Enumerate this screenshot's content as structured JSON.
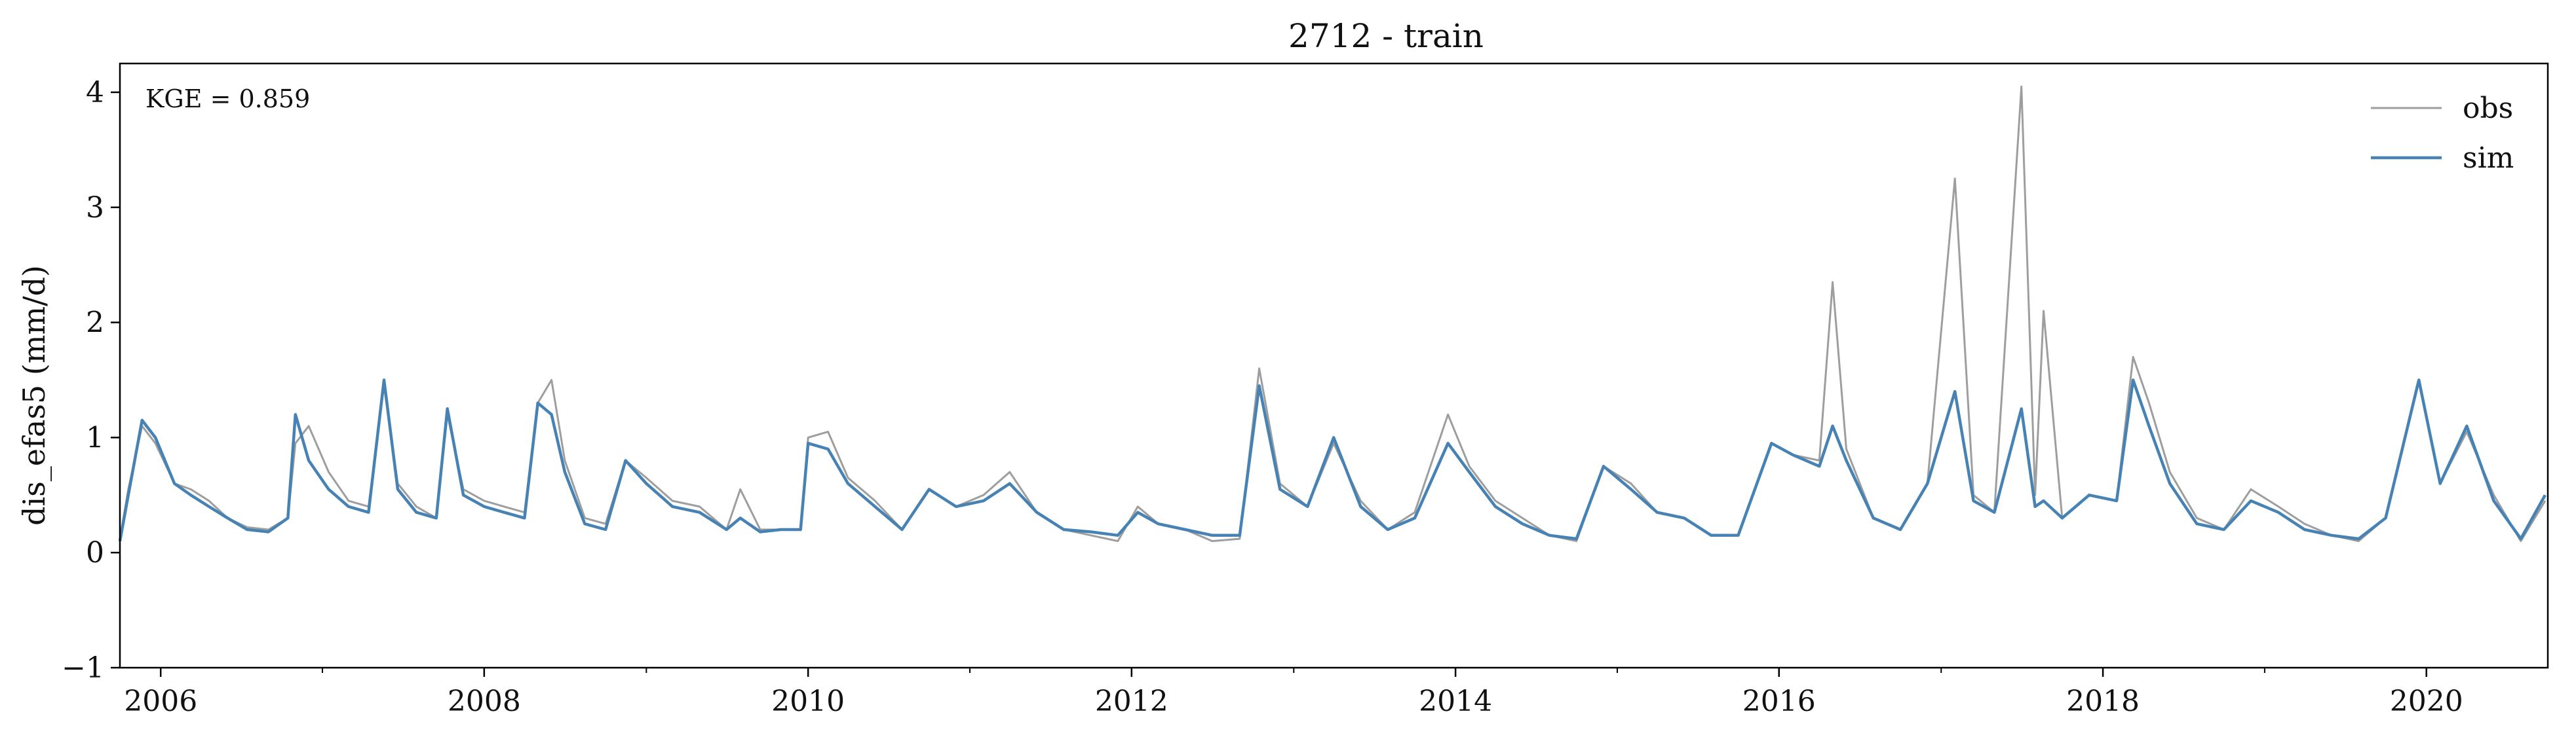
{
  "chart_data": {
    "type": "line",
    "title": "2712 - train",
    "xlabel": "",
    "ylabel": "dis_efas5 (mm/d)",
    "xlim": [
      "2005-10-01",
      "2020-10-01"
    ],
    "ylim": [
      -1,
      4.25
    ],
    "x_ticks_major": [
      "2006",
      "2008",
      "2010",
      "2012",
      "2014",
      "2016",
      "2018",
      "2020"
    ],
    "x_ticks_minor_years": [
      2007,
      2009,
      2011,
      2013,
      2015,
      2017,
      2019
    ],
    "y_ticks": [
      "−1",
      "0",
      "1",
      "2",
      "3",
      "4"
    ],
    "grid": false,
    "legend": {
      "position": "top-right",
      "entries": [
        "obs",
        "sim"
      ]
    },
    "annotation": "KGE = 0.859",
    "series": [
      {
        "name": "obs",
        "color": "#9e9e9e",
        "points": [
          [
            "2005-10-01",
            0.12
          ],
          [
            "2005-10-20",
            0.55
          ],
          [
            "2005-11-20",
            1.1
          ],
          [
            "2005-12-20",
            0.95
          ],
          [
            "2006-02-01",
            0.6
          ],
          [
            "2006-03-10",
            0.55
          ],
          [
            "2006-04-20",
            0.45
          ],
          [
            "2006-06-01",
            0.3
          ],
          [
            "2006-07-15",
            0.22
          ],
          [
            "2006-09-01",
            0.2
          ],
          [
            "2006-10-15",
            0.3
          ],
          [
            "2006-11-01",
            0.95
          ],
          [
            "2006-12-01",
            1.1
          ],
          [
            "2007-01-15",
            0.7
          ],
          [
            "2007-03-01",
            0.45
          ],
          [
            "2007-04-15",
            0.4
          ],
          [
            "2007-05-20",
            1.45
          ],
          [
            "2007-06-20",
            0.6
          ],
          [
            "2007-08-01",
            0.4
          ],
          [
            "2007-09-15",
            0.3
          ],
          [
            "2007-10-10",
            1.2
          ],
          [
            "2007-11-15",
            0.55
          ],
          [
            "2008-01-01",
            0.45
          ],
          [
            "2008-02-15",
            0.4
          ],
          [
            "2008-04-01",
            0.35
          ],
          [
            "2008-05-01",
            1.3
          ],
          [
            "2008-06-01",
            1.5
          ],
          [
            "2008-07-01",
            0.8
          ],
          [
            "2008-08-15",
            0.3
          ],
          [
            "2008-10-01",
            0.25
          ],
          [
            "2008-11-15",
            0.8
          ],
          [
            "2009-01-01",
            0.65
          ],
          [
            "2009-03-01",
            0.45
          ],
          [
            "2009-05-01",
            0.4
          ],
          [
            "2009-07-01",
            0.2
          ],
          [
            "2009-08-01",
            0.55
          ],
          [
            "2009-09-15",
            0.2
          ],
          [
            "2009-11-01",
            0.2
          ],
          [
            "2009-12-15",
            0.2
          ],
          [
            "2010-01-01",
            1.0
          ],
          [
            "2010-02-15",
            1.05
          ],
          [
            "2010-04-01",
            0.65
          ],
          [
            "2010-06-01",
            0.45
          ],
          [
            "2010-08-01",
            0.2
          ],
          [
            "2010-10-01",
            0.55
          ],
          [
            "2010-12-01",
            0.4
          ],
          [
            "2011-02-01",
            0.5
          ],
          [
            "2011-04-01",
            0.7
          ],
          [
            "2011-06-01",
            0.35
          ],
          [
            "2011-08-01",
            0.2
          ],
          [
            "2011-10-01",
            0.15
          ],
          [
            "2011-12-01",
            0.1
          ],
          [
            "2012-01-15",
            0.4
          ],
          [
            "2012-03-01",
            0.25
          ],
          [
            "2012-05-01",
            0.2
          ],
          [
            "2012-07-01",
            0.1
          ],
          [
            "2012-09-01",
            0.12
          ],
          [
            "2012-10-15",
            1.6
          ],
          [
            "2012-12-01",
            0.6
          ],
          [
            "2013-02-01",
            0.4
          ],
          [
            "2013-04-01",
            0.95
          ],
          [
            "2013-06-01",
            0.45
          ],
          [
            "2013-08-01",
            0.2
          ],
          [
            "2013-10-01",
            0.35
          ],
          [
            "2013-12-15",
            1.2
          ],
          [
            "2014-02-01",
            0.75
          ],
          [
            "2014-04-01",
            0.45
          ],
          [
            "2014-06-01",
            0.3
          ],
          [
            "2014-08-01",
            0.15
          ],
          [
            "2014-10-01",
            0.1
          ],
          [
            "2014-12-01",
            0.75
          ],
          [
            "2015-02-01",
            0.6
          ],
          [
            "2015-04-01",
            0.35
          ],
          [
            "2015-06-01",
            0.3
          ],
          [
            "2015-08-01",
            0.15
          ],
          [
            "2015-10-01",
            0.15
          ],
          [
            "2015-12-15",
            0.95
          ],
          [
            "2016-02-01",
            0.85
          ],
          [
            "2016-04-01",
            0.8
          ],
          [
            "2016-05-01",
            2.35
          ],
          [
            "2016-06-01",
            0.9
          ],
          [
            "2016-08-01",
            0.3
          ],
          [
            "2016-10-01",
            0.2
          ],
          [
            "2016-12-01",
            0.6
          ],
          [
            "2017-02-01",
            3.25
          ],
          [
            "2017-03-15",
            0.5
          ],
          [
            "2017-05-01",
            0.35
          ],
          [
            "2017-07-01",
            4.05
          ],
          [
            "2017-08-01",
            0.5
          ],
          [
            "2017-08-20",
            2.1
          ],
          [
            "2017-10-01",
            0.3
          ],
          [
            "2017-12-01",
            0.5
          ],
          [
            "2018-02-01",
            0.45
          ],
          [
            "2018-03-10",
            1.7
          ],
          [
            "2018-04-15",
            1.3
          ],
          [
            "2018-06-01",
            0.7
          ],
          [
            "2018-08-01",
            0.3
          ],
          [
            "2018-10-01",
            0.2
          ],
          [
            "2018-12-01",
            0.55
          ],
          [
            "2019-02-01",
            0.4
          ],
          [
            "2019-04-01",
            0.25
          ],
          [
            "2019-06-01",
            0.15
          ],
          [
            "2019-08-01",
            0.1
          ],
          [
            "2019-10-01",
            0.3
          ],
          [
            "2019-12-15",
            1.5
          ],
          [
            "2020-02-01",
            0.6
          ],
          [
            "2020-04-01",
            1.05
          ],
          [
            "2020-06-01",
            0.5
          ],
          [
            "2020-08-01",
            0.1
          ],
          [
            "2020-09-25",
            0.45
          ]
        ]
      },
      {
        "name": "sim",
        "color": "#4682b4",
        "points": [
          [
            "2005-10-01",
            0.1
          ],
          [
            "2005-10-20",
            0.5
          ],
          [
            "2005-11-20",
            1.15
          ],
          [
            "2005-12-20",
            1.0
          ],
          [
            "2006-02-01",
            0.6
          ],
          [
            "2006-03-10",
            0.5
          ],
          [
            "2006-04-20",
            0.4
          ],
          [
            "2006-06-01",
            0.3
          ],
          [
            "2006-07-15",
            0.2
          ],
          [
            "2006-09-01",
            0.18
          ],
          [
            "2006-10-15",
            0.3
          ],
          [
            "2006-11-01",
            1.2
          ],
          [
            "2006-12-01",
            0.8
          ],
          [
            "2007-01-15",
            0.55
          ],
          [
            "2007-03-01",
            0.4
          ],
          [
            "2007-04-15",
            0.35
          ],
          [
            "2007-05-20",
            1.5
          ],
          [
            "2007-06-20",
            0.55
          ],
          [
            "2007-08-01",
            0.35
          ],
          [
            "2007-09-15",
            0.3
          ],
          [
            "2007-10-10",
            1.25
          ],
          [
            "2007-11-15",
            0.5
          ],
          [
            "2008-01-01",
            0.4
          ],
          [
            "2008-02-15",
            0.35
          ],
          [
            "2008-04-01",
            0.3
          ],
          [
            "2008-05-01",
            1.3
          ],
          [
            "2008-06-01",
            1.2
          ],
          [
            "2008-07-01",
            0.7
          ],
          [
            "2008-08-15",
            0.25
          ],
          [
            "2008-10-01",
            0.2
          ],
          [
            "2008-11-15",
            0.8
          ],
          [
            "2009-01-01",
            0.6
          ],
          [
            "2009-03-01",
            0.4
          ],
          [
            "2009-05-01",
            0.35
          ],
          [
            "2009-07-01",
            0.2
          ],
          [
            "2009-08-01",
            0.3
          ],
          [
            "2009-09-15",
            0.18
          ],
          [
            "2009-11-01",
            0.2
          ],
          [
            "2009-12-15",
            0.2
          ],
          [
            "2010-01-01",
            0.95
          ],
          [
            "2010-02-15",
            0.9
          ],
          [
            "2010-04-01",
            0.6
          ],
          [
            "2010-06-01",
            0.4
          ],
          [
            "2010-08-01",
            0.2
          ],
          [
            "2010-10-01",
            0.55
          ],
          [
            "2010-12-01",
            0.4
          ],
          [
            "2011-02-01",
            0.45
          ],
          [
            "2011-04-01",
            0.6
          ],
          [
            "2011-06-01",
            0.35
          ],
          [
            "2011-08-01",
            0.2
          ],
          [
            "2011-10-01",
            0.18
          ],
          [
            "2011-12-01",
            0.15
          ],
          [
            "2012-01-15",
            0.35
          ],
          [
            "2012-03-01",
            0.25
          ],
          [
            "2012-05-01",
            0.2
          ],
          [
            "2012-07-01",
            0.15
          ],
          [
            "2012-09-01",
            0.15
          ],
          [
            "2012-10-15",
            1.45
          ],
          [
            "2012-12-01",
            0.55
          ],
          [
            "2013-02-01",
            0.4
          ],
          [
            "2013-04-01",
            1.0
          ],
          [
            "2013-06-01",
            0.4
          ],
          [
            "2013-08-01",
            0.2
          ],
          [
            "2013-10-01",
            0.3
          ],
          [
            "2013-12-15",
            0.95
          ],
          [
            "2014-02-01",
            0.7
          ],
          [
            "2014-04-01",
            0.4
          ],
          [
            "2014-06-01",
            0.25
          ],
          [
            "2014-08-01",
            0.15
          ],
          [
            "2014-10-01",
            0.12
          ],
          [
            "2014-12-01",
            0.75
          ],
          [
            "2015-02-01",
            0.55
          ],
          [
            "2015-04-01",
            0.35
          ],
          [
            "2015-06-01",
            0.3
          ],
          [
            "2015-08-01",
            0.15
          ],
          [
            "2015-10-01",
            0.15
          ],
          [
            "2015-12-15",
            0.95
          ],
          [
            "2016-02-01",
            0.85
          ],
          [
            "2016-04-01",
            0.75
          ],
          [
            "2016-05-01",
            1.1
          ],
          [
            "2016-06-01",
            0.8
          ],
          [
            "2016-08-01",
            0.3
          ],
          [
            "2016-10-01",
            0.2
          ],
          [
            "2016-12-01",
            0.6
          ],
          [
            "2017-02-01",
            1.4
          ],
          [
            "2017-03-15",
            0.45
          ],
          [
            "2017-05-01",
            0.35
          ],
          [
            "2017-07-01",
            1.25
          ],
          [
            "2017-08-01",
            0.4
          ],
          [
            "2017-08-20",
            0.45
          ],
          [
            "2017-10-01",
            0.3
          ],
          [
            "2017-12-01",
            0.5
          ],
          [
            "2018-02-01",
            0.45
          ],
          [
            "2018-03-10",
            1.5
          ],
          [
            "2018-04-15",
            1.1
          ],
          [
            "2018-06-01",
            0.6
          ],
          [
            "2018-08-01",
            0.25
          ],
          [
            "2018-10-01",
            0.2
          ],
          [
            "2018-12-01",
            0.45
          ],
          [
            "2019-02-01",
            0.35
          ],
          [
            "2019-04-01",
            0.2
          ],
          [
            "2019-06-01",
            0.15
          ],
          [
            "2019-08-01",
            0.12
          ],
          [
            "2019-10-01",
            0.3
          ],
          [
            "2019-12-15",
            1.5
          ],
          [
            "2020-02-01",
            0.6
          ],
          [
            "2020-04-01",
            1.1
          ],
          [
            "2020-06-01",
            0.45
          ],
          [
            "2020-08-01",
            0.12
          ],
          [
            "2020-09-25",
            0.5
          ]
        ]
      }
    ]
  }
}
